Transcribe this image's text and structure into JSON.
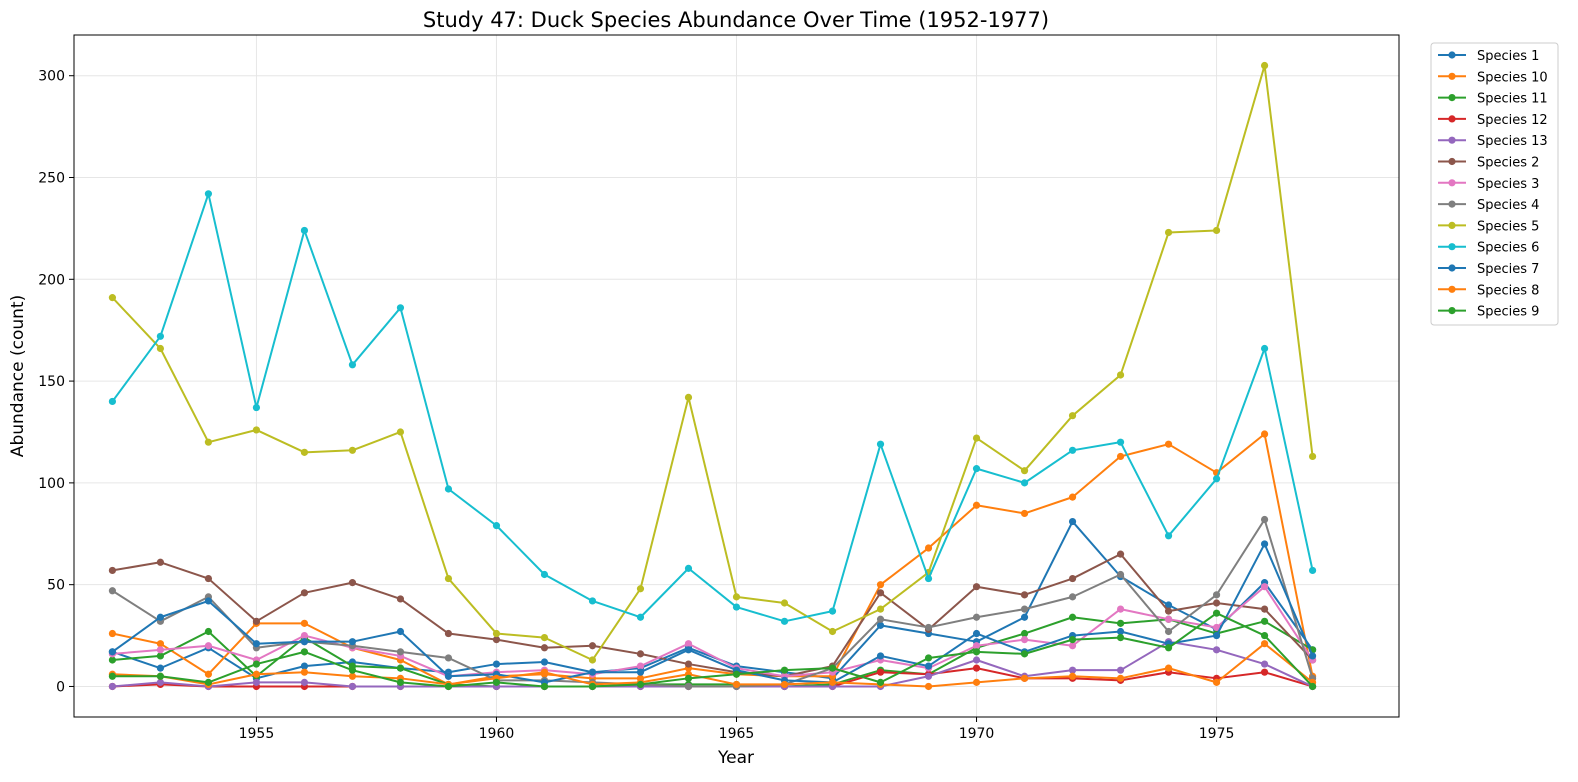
{
  "chart_data": {
    "type": "line",
    "title": "Study 47: Duck Species Abundance Over Time (1952-1977)",
    "xlabel": "Year",
    "ylabel": "Abundance (count)",
    "xlim": [
      1951.2,
      1978.8
    ],
    "ylim": [
      -15,
      320
    ],
    "xticks": [
      1955,
      1960,
      1965,
      1970,
      1975
    ],
    "yticks": [
      0,
      50,
      100,
      150,
      200,
      250,
      300
    ],
    "grid": true,
    "legend_position": "outside-top-right",
    "x": [
      1952,
      1953,
      1954,
      1955,
      1956,
      1957,
      1958,
      1959,
      1960,
      1961,
      1962,
      1963,
      1964,
      1965,
      1966,
      1967,
      1968,
      1969,
      1970,
      1971,
      1972,
      1973,
      1974,
      1975,
      1976,
      1977
    ],
    "series": [
      {
        "name": "Species 1",
        "color": "#1f77b4",
        "values": [
          17,
          9,
          19,
          4,
          10,
          12,
          9,
          7,
          11,
          12,
          7,
          9,
          19,
          10,
          7,
          4,
          30,
          26,
          22,
          34,
          81,
          54,
          40,
          28,
          51,
          18
        ]
      },
      {
        "name": "Species 10",
        "color": "#ff7f0e",
        "values": [
          26,
          21,
          6,
          31,
          31,
          19,
          13,
          1,
          5,
          6,
          4,
          4,
          9,
          6,
          5,
          5,
          50,
          68,
          89,
          85,
          93,
          113,
          119,
          105,
          124,
          5
        ]
      },
      {
        "name": "Species 11",
        "color": "#2ca02c",
        "values": [
          13,
          15,
          27,
          5,
          24,
          10,
          9,
          1,
          0,
          0,
          0,
          1,
          1,
          1,
          0,
          1,
          8,
          6,
          19,
          26,
          34,
          31,
          33,
          26,
          32,
          18
        ]
      },
      {
        "name": "Species 12",
        "color": "#d62728",
        "values": [
          0,
          1,
          0,
          0,
          0,
          0,
          0,
          0,
          0,
          0,
          0,
          0,
          0,
          0,
          0,
          0,
          7,
          6,
          9,
          4,
          4,
          3,
          7,
          4,
          7,
          0
        ]
      },
      {
        "name": "Species 13",
        "color": "#9467bd",
        "values": [
          0,
          2,
          0,
          2,
          2,
          0,
          0,
          0,
          0,
          0,
          0,
          0,
          0,
          0,
          0,
          0,
          0,
          5,
          13,
          5,
          8,
          8,
          22,
          18,
          11,
          0
        ]
      },
      {
        "name": "Species 2",
        "color": "#8c564b",
        "values": [
          57,
          61,
          53,
          32,
          46,
          51,
          43,
          26,
          23,
          19,
          20,
          16,
          11,
          7,
          5,
          10,
          46,
          28,
          49,
          45,
          53,
          65,
          37,
          41,
          38,
          13
        ]
      },
      {
        "name": "Species 3",
        "color": "#e377c2",
        "values": [
          16,
          18,
          20,
          13,
          25,
          19,
          15,
          5,
          7,
          8,
          6,
          10,
          21,
          9,
          5,
          7,
          13,
          9,
          20,
          23,
          20,
          38,
          33,
          29,
          49,
          13
        ]
      },
      {
        "name": "Species 4",
        "color": "#7f7f7f",
        "values": [
          47,
          32,
          44,
          19,
          22,
          20,
          17,
          14,
          3,
          3,
          2,
          1,
          0,
          0,
          1,
          9,
          33,
          29,
          34,
          38,
          44,
          55,
          27,
          45,
          82,
          4
        ]
      },
      {
        "name": "Species 5",
        "color": "#bcbd22",
        "values": [
          191,
          166,
          120,
          126,
          115,
          116,
          125,
          53,
          26,
          24,
          13,
          48,
          142,
          44,
          41,
          27,
          38,
          56,
          122,
          106,
          133,
          153,
          223,
          224,
          305,
          113
        ]
      },
      {
        "name": "Species 6",
        "color": "#17becf",
        "values": [
          140,
          172,
          242,
          137,
          224,
          158,
          186,
          97,
          79,
          55,
          42,
          34,
          58,
          39,
          32,
          37,
          119,
          53,
          107,
          100,
          116,
          120,
          74,
          102,
          166,
          57
        ]
      },
      {
        "name": "Species 7",
        "color": "#1f77b4",
        "values": [
          17,
          34,
          42,
          21,
          22,
          22,
          27,
          5,
          6,
          2,
          7,
          7,
          18,
          8,
          3,
          2,
          15,
          10,
          26,
          17,
          25,
          27,
          21,
          25,
          70,
          15
        ]
      },
      {
        "name": "Species 8",
        "color": "#ff7f0e",
        "values": [
          6,
          5,
          1,
          6,
          7,
          5,
          4,
          1,
          4,
          7,
          1,
          2,
          6,
          1,
          1,
          2,
          1,
          0,
          2,
          4,
          5,
          4,
          9,
          2,
          21,
          2
        ]
      },
      {
        "name": "Species 9",
        "color": "#2ca02c",
        "values": [
          5,
          5,
          2,
          11,
          17,
          8,
          2,
          0,
          2,
          0,
          0,
          1,
          4,
          6,
          8,
          9,
          2,
          14,
          17,
          16,
          23,
          24,
          19,
          36,
          25,
          0
        ]
      }
    ]
  }
}
